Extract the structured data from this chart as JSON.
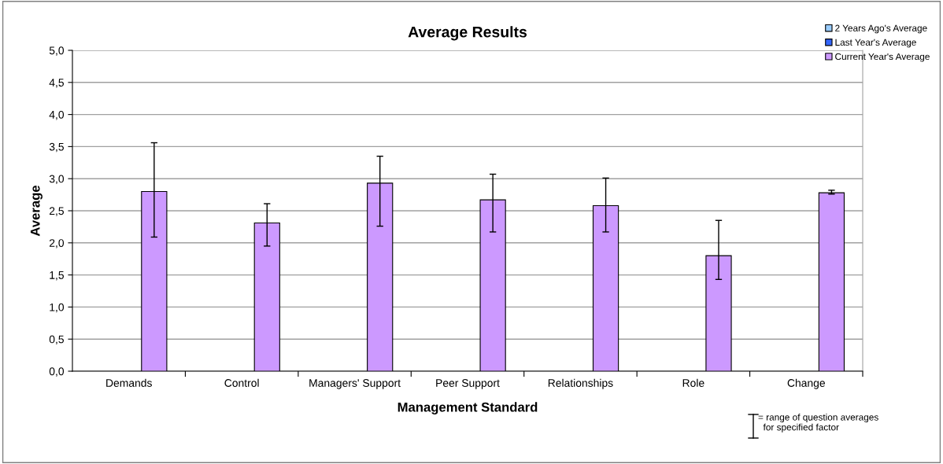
{
  "chart_data": {
    "type": "bar",
    "title": "Average Results",
    "xlabel": "Management Standard",
    "ylabel": "Average",
    "categories": [
      "Demands",
      "Control",
      "Managers' Support",
      "Peer Support",
      "Relationships",
      "Role",
      "Change"
    ],
    "series": [
      {
        "name": "2 Years Ago's Average",
        "color": "#99ccff",
        "values": [
          null,
          null,
          null,
          null,
          null,
          null,
          null
        ]
      },
      {
        "name": "Last Year's Average",
        "color": "#3366ff",
        "values": [
          null,
          null,
          null,
          null,
          null,
          null,
          null
        ]
      },
      {
        "name": "Current Year's Average",
        "color": "#cc99ff",
        "values": [
          2.8,
          2.31,
          2.93,
          2.67,
          2.58,
          1.8,
          2.78
        ],
        "errors": [
          [
            2.09,
            3.56
          ],
          [
            1.95,
            2.61
          ],
          [
            2.26,
            3.35
          ],
          [
            2.17,
            3.07
          ],
          [
            2.17,
            3.01
          ],
          [
            1.43,
            2.35
          ],
          [
            2.76,
            2.82
          ]
        ]
      }
    ],
    "ylim": [
      0,
      5
    ],
    "yticks": [
      {
        "value": 0,
        "label": "0,0"
      },
      {
        "value": 0.5,
        "label": "0,5"
      },
      {
        "value": 1,
        "label": "1,0"
      },
      {
        "value": 1.5,
        "label": "1,5"
      },
      {
        "value": 2,
        "label": "2,0"
      },
      {
        "value": 2.5,
        "label": "2,5"
      },
      {
        "value": 3,
        "label": "3,0"
      },
      {
        "value": 3.5,
        "label": "3,5"
      },
      {
        "value": 4,
        "label": "4,0"
      },
      {
        "value": 4.5,
        "label": "4,5"
      },
      {
        "value": 5,
        "label": "5,0"
      }
    ],
    "grid": "y",
    "legend": "top right",
    "annotations": [
      "= range of question averages\n  for specified factor"
    ]
  }
}
